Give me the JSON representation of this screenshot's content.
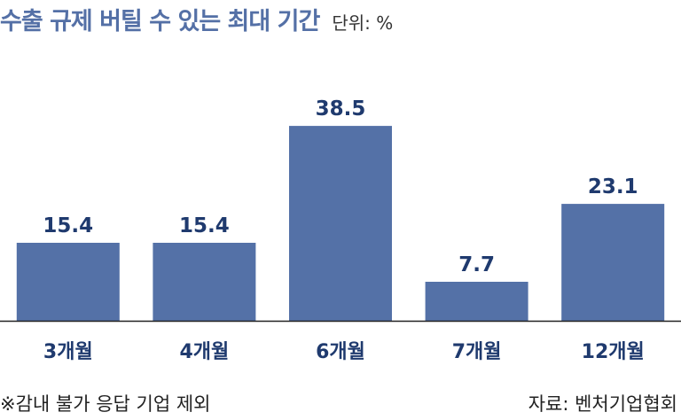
{
  "header": {
    "title": "수출 규제 버틸 수 있는 최대 기간",
    "unit": "단위: %"
  },
  "footer": {
    "note": "※감내 불가 응답 기업 제외",
    "source": "자료: 벤처기업협회"
  },
  "colors": {
    "bar": "#5471a7",
    "title": "#5470a6",
    "label": "#1f3a6e",
    "axis": "#222222"
  },
  "chart_data": {
    "type": "bar",
    "title": "수출 규제 버틸 수 있는 최대 기간",
    "unit": "단위: %",
    "categories": [
      "3개월",
      "4개월",
      "6개월",
      "7개월",
      "12개월"
    ],
    "values": [
      15.4,
      15.4,
      38.5,
      7.7,
      23.1
    ],
    "value_labels": [
      "15.4",
      "15.4",
      "38.5",
      "7.7",
      "23.1"
    ],
    "ylim": [
      0,
      45
    ],
    "grid": false,
    "legend": "none"
  }
}
